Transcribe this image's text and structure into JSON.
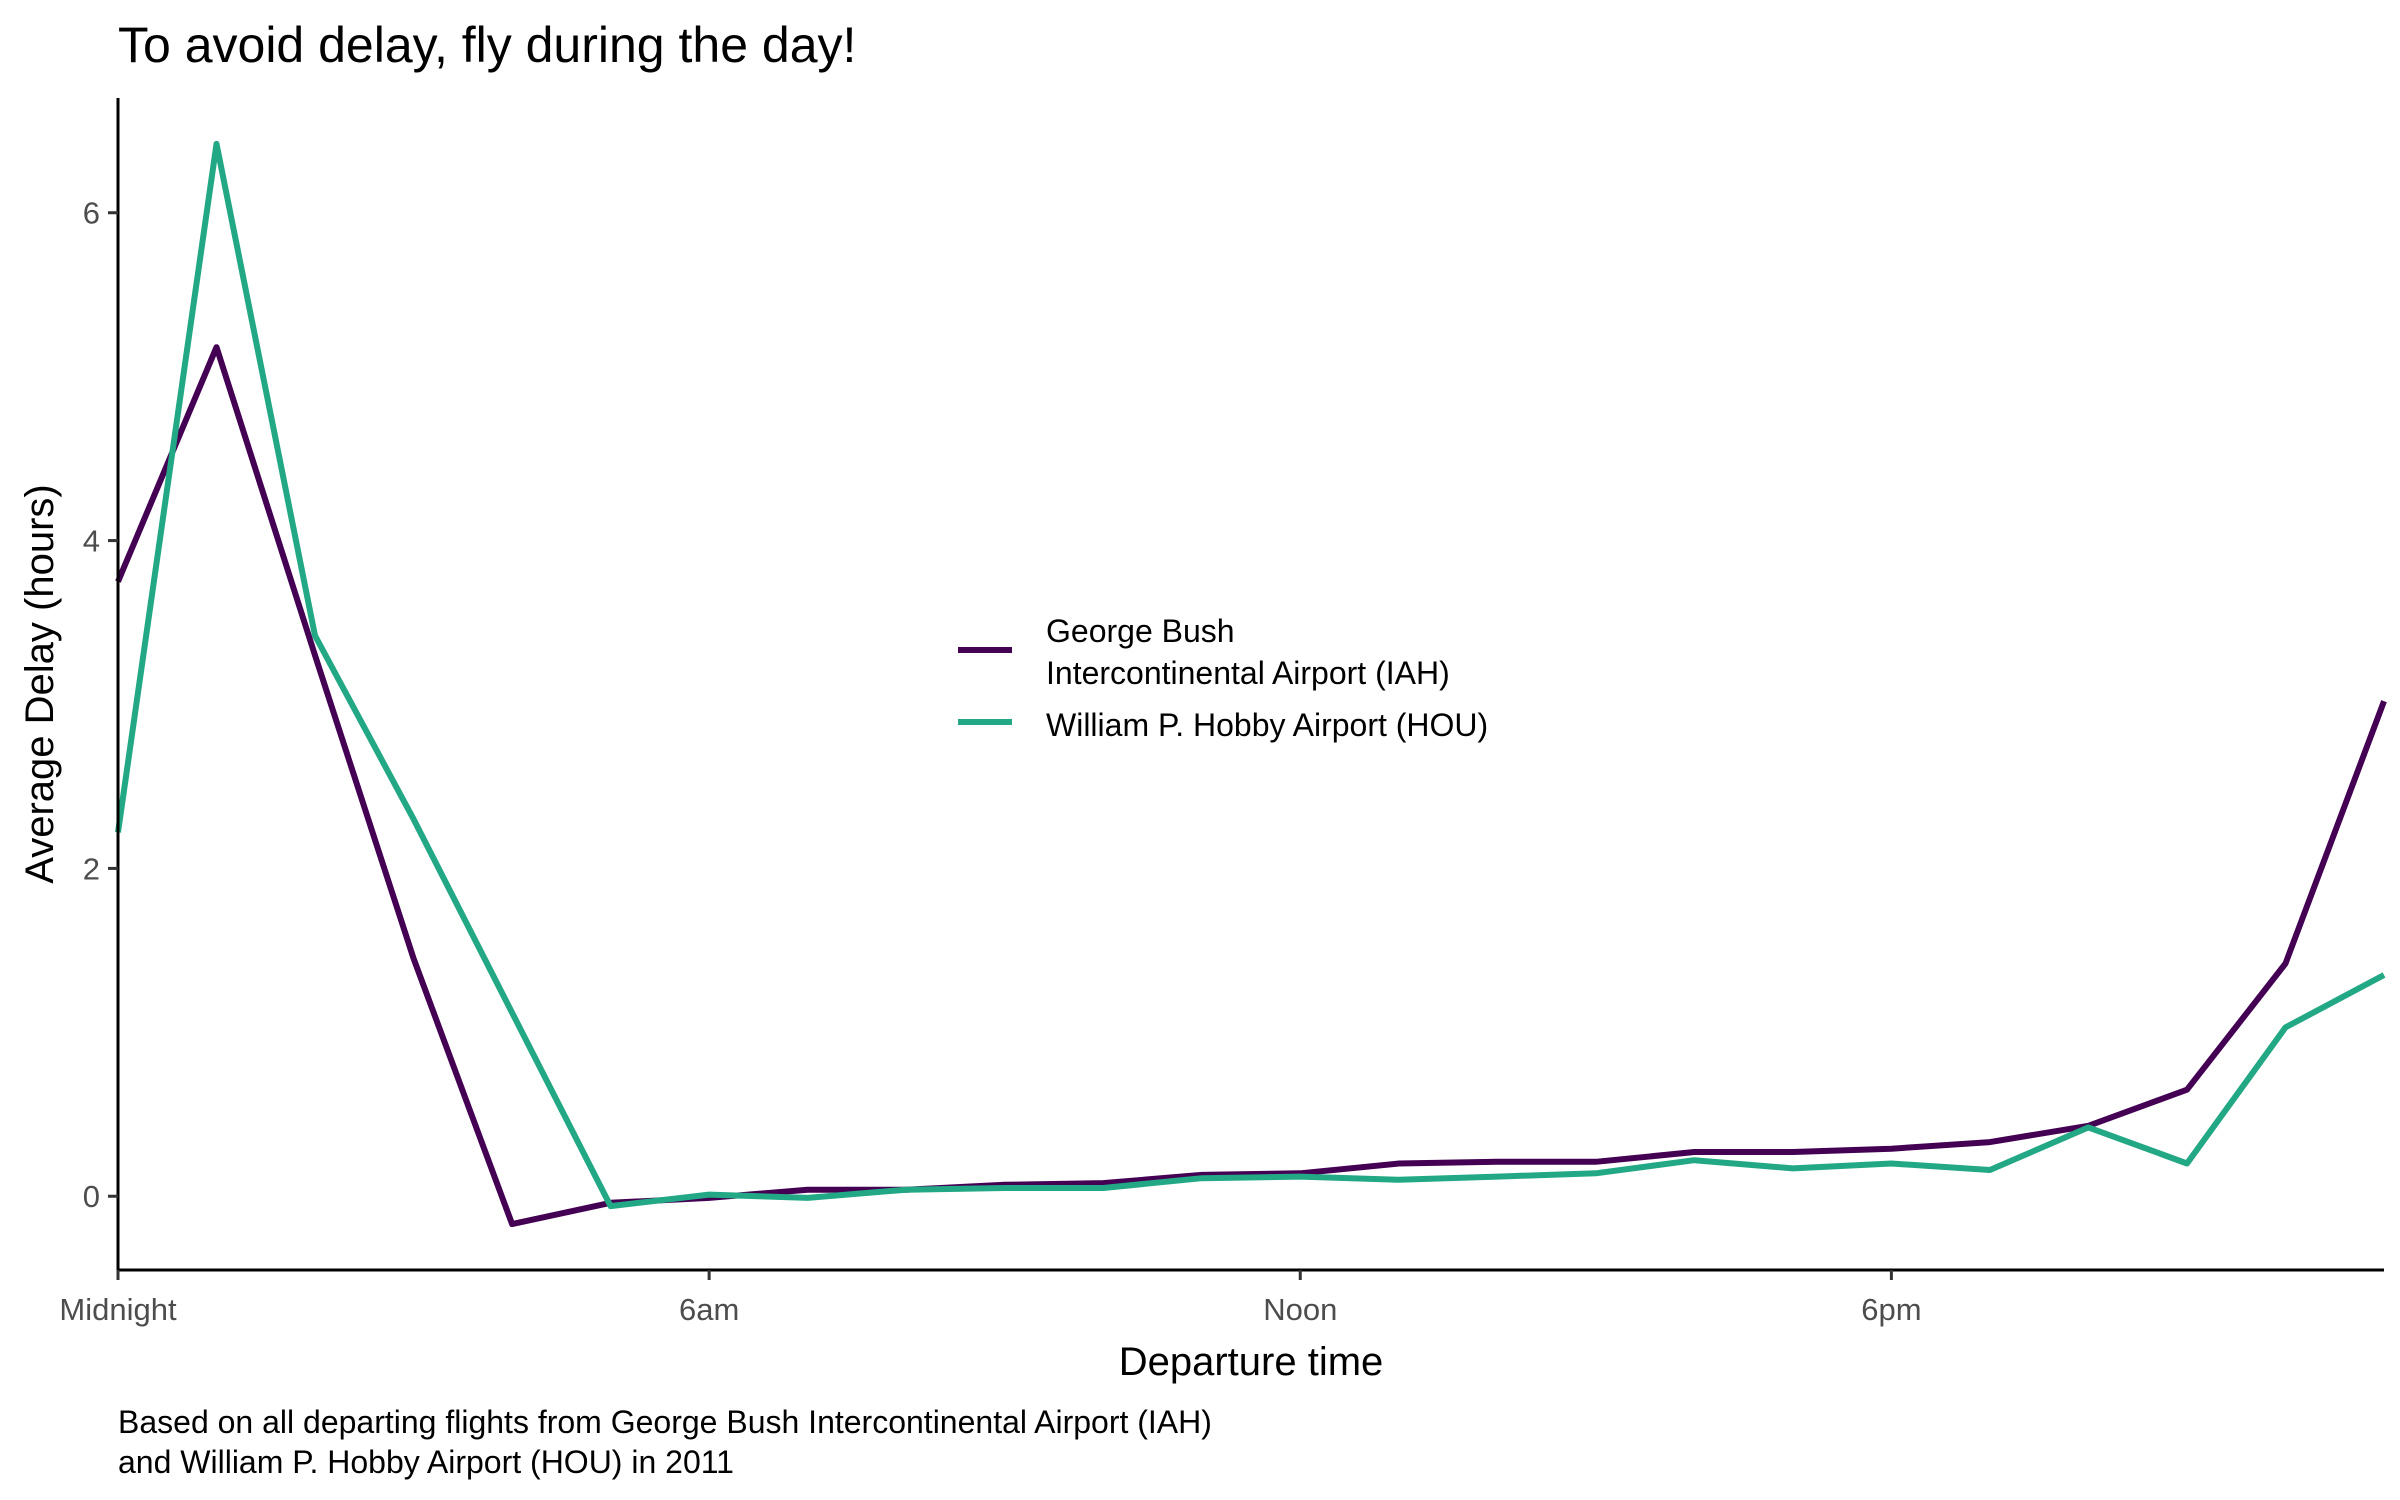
{
  "chart_data": {
    "type": "line",
    "title": "To avoid delay, fly during the day!",
    "xlabel": "Departure time",
    "ylabel": "Average Delay (hours)",
    "caption_lines": [
      "Based on all departing flights from George Bush Intercontinental Airport (IAH)",
      "and William P. Hobby Airport (HOU) in 2011"
    ],
    "x_ticks": [
      {
        "value": 0,
        "label": "Midnight"
      },
      {
        "value": 6,
        "label": "6am"
      },
      {
        "value": 12,
        "label": "Noon"
      },
      {
        "value": 18,
        "label": "6pm"
      }
    ],
    "y_ticks": [
      0,
      2,
      4,
      6
    ],
    "xlim": [
      0,
      23
    ],
    "ylim": [
      -0.45,
      6.7
    ],
    "grid": false,
    "legend_position": "center",
    "series": [
      {
        "name_lines": [
          "George Bush",
          "Intercontinental Airport (IAH)"
        ],
        "color": "#440154",
        "x": [
          0,
          1,
          2,
          3,
          4,
          5,
          6,
          7,
          8,
          9,
          10,
          11,
          12,
          13,
          14,
          15,
          16,
          17,
          18,
          19,
          20,
          21,
          22,
          23
        ],
        "y": [
          3.75,
          5.18,
          3.3,
          1.45,
          -0.17,
          -0.04,
          -0.01,
          0.04,
          0.04,
          0.07,
          0.08,
          0.13,
          0.14,
          0.2,
          0.21,
          0.21,
          0.27,
          0.27,
          0.29,
          0.33,
          0.43,
          0.65,
          1.42,
          3.02
        ]
      },
      {
        "name_lines": [
          "William P. Hobby Airport (HOU)"
        ],
        "color": "#22A884",
        "x": [
          0,
          1,
          2,
          3,
          4,
          5,
          6,
          7,
          8,
          9,
          10,
          11,
          12,
          13,
          14,
          15,
          16,
          17,
          18,
          19,
          20,
          21,
          22,
          23
        ],
        "y": [
          2.22,
          6.42,
          3.42,
          2.3,
          1.12,
          -0.06,
          0.01,
          -0.01,
          0.04,
          0.05,
          0.05,
          0.11,
          0.12,
          0.1,
          0.12,
          0.14,
          0.22,
          0.17,
          0.2,
          0.16,
          0.42,
          0.2,
          1.03,
          1.35
        ]
      }
    ]
  }
}
